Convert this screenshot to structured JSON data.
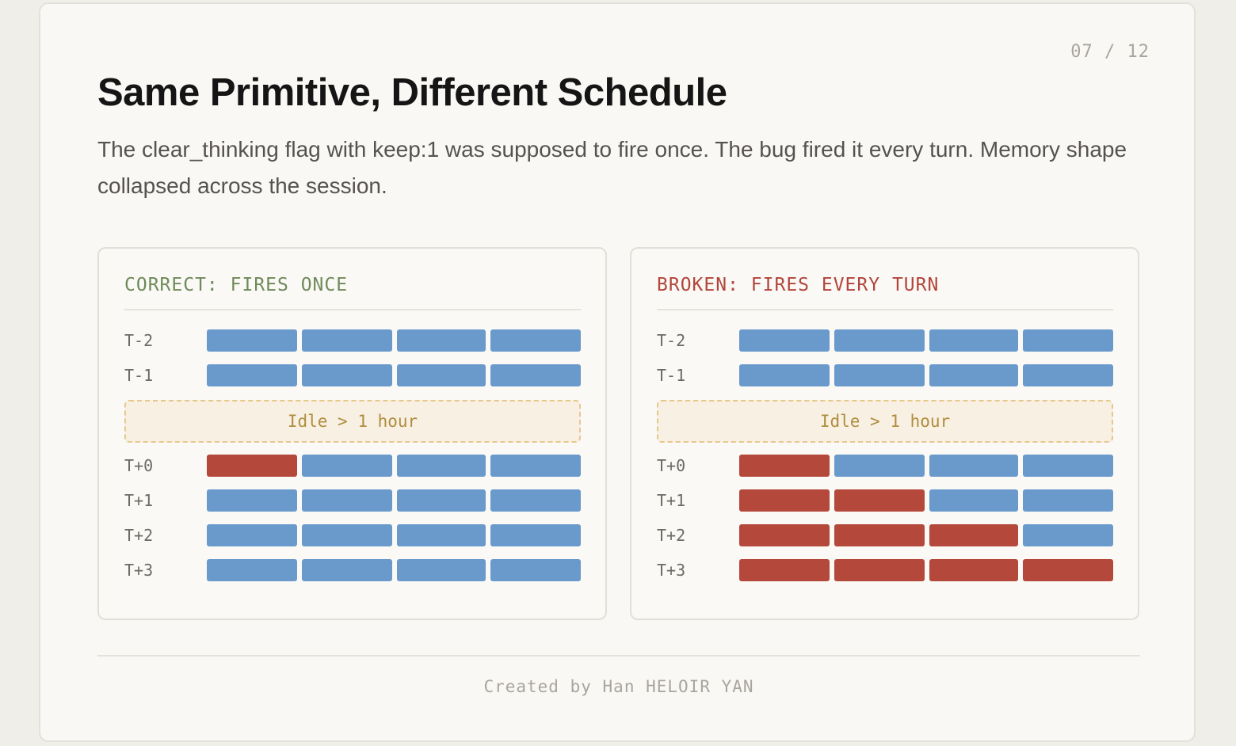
{
  "slide": {
    "page_number": "07 / 12",
    "title": "Same Primitive, Different Schedule",
    "subtitle": "The clear_thinking flag with keep:1 was supposed to fire once. The bug fired it every turn. Memory shape collapsed across the session.",
    "footer": "Created by Han HELOIR YAN"
  },
  "legend_colors": {
    "kept": "#6a9acc",
    "cleared": "#b4483b",
    "idle_border": "#e6c88f",
    "idle_background": "#f8f0e2"
  },
  "panels": [
    {
      "title": "CORRECT: FIRES ONCE",
      "title_color": "#6f8a59",
      "idle_label": "Idle > 1 hour",
      "before_idle": [
        {
          "label": "T-2",
          "blocks": [
            "kept",
            "kept",
            "kept",
            "kept"
          ]
        },
        {
          "label": "T-1",
          "blocks": [
            "kept",
            "kept",
            "kept",
            "kept"
          ]
        }
      ],
      "after_idle": [
        {
          "label": "T+0",
          "blocks": [
            "cleared",
            "kept",
            "kept",
            "kept"
          ]
        },
        {
          "label": "T+1",
          "blocks": [
            "kept",
            "kept",
            "kept",
            "kept"
          ]
        },
        {
          "label": "T+2",
          "blocks": [
            "kept",
            "kept",
            "kept",
            "kept"
          ]
        },
        {
          "label": "T+3",
          "blocks": [
            "kept",
            "kept",
            "kept",
            "kept"
          ]
        }
      ]
    },
    {
      "title": "BROKEN: FIRES EVERY TURN",
      "title_color": "#b2453a",
      "idle_label": "Idle > 1 hour",
      "before_idle": [
        {
          "label": "T-2",
          "blocks": [
            "kept",
            "kept",
            "kept",
            "kept"
          ]
        },
        {
          "label": "T-1",
          "blocks": [
            "kept",
            "kept",
            "kept",
            "kept"
          ]
        }
      ],
      "after_idle": [
        {
          "label": "T+0",
          "blocks": [
            "cleared",
            "kept",
            "kept",
            "kept"
          ]
        },
        {
          "label": "T+1",
          "blocks": [
            "cleared",
            "cleared",
            "kept",
            "kept"
          ]
        },
        {
          "label": "T+2",
          "blocks": [
            "cleared",
            "cleared",
            "cleared",
            "kept"
          ]
        },
        {
          "label": "T+3",
          "blocks": [
            "cleared",
            "cleared",
            "cleared",
            "cleared"
          ]
        }
      ]
    }
  ]
}
